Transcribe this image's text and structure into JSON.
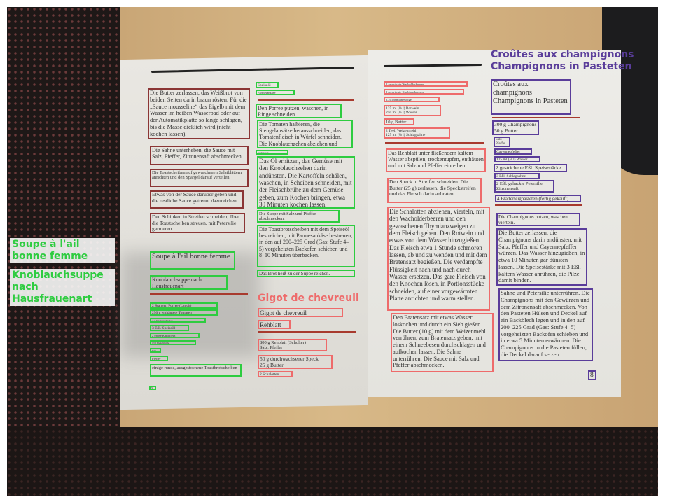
{
  "colors": {
    "left_col": "#8b3535",
    "green": "#2ecc40",
    "red": "#ee6b6b",
    "purple": "#5a3d9a"
  },
  "overlay_labels": {
    "soupe_title": "Soupe à l'ail bonne femme",
    "soupe_subtitle": "Knoblauchsuppe nach Hausfrauenart",
    "gigot_title": "Gigot de chevreuil",
    "croutes_title": "Croûtes aux champignons Champignons in Pasteten"
  },
  "groups": [
    {
      "color_key": "left_col",
      "blocks": [
        "Die Butter zerlassen, das Weißbrot von beiden Seiten darin braun rösten. Für die „Sauce mousseline“ das Eigelb mit dem Wasser im heißen Wasserbad oder auf der Automatikplatte so lange schlagen, bis die Masse dicklich wird (nicht kochen lassen).",
        "Die Sahne unterheben, die Sauce mit Salz, Pfeffer, Zitronensaft abschmecken.",
        "Die Toastscheiben auf gewaschenen Salatblättern anrichten und den Spargel darauf verteilen.",
        "Etwas von der Sauce darüber geben und die restliche Sauce getrennt dazureichen.",
        "Den Schinken in Streifen schneiden, über die Toastscheiben streuen, mit Petersilie garnieren."
      ]
    },
    {
      "color_key": "green",
      "blocks": [
        "Soupe à l'ail bonne femme",
        "Knoblauchsuppe nach Hausfrauenart",
        "2 Stangen Porree (Lauch)",
        "250 g enthäutete Tomaten",
        "4–5 Knoblauchzehen",
        "3 Eßl. Speiseöl",
        "2 große Kartoffeln",
        "1½ l Fleischbrühe",
        "Salz",
        "Pfeffer",
        "einige runde, ausgestochene Toastbrotscheiben",
        "50",
        "Speiseöl",
        "Parmesankäse",
        "Den Porree putzen, waschen, in Ringe schneiden.",
        "Die Tomaten halbieren, die Stengelansätze herausschneiden, das Tomatenfleisch in Würfel schneiden. Die Knoblauchzehen abziehen und",
        "zerdrücken.",
        "Das Öl erhitzen, das Gemüse mit den Knoblauchzehen darin andünsten. Die Kartoffeln schälen, waschen, in Scheiben schneiden, mit der Fleischbrühe zu dem Gemüse geben, zum Kochen bringen, etwa 30 Minuten kochen lassen.",
        "Die Suppe mit Salz und Pfeffer abschmecken.",
        "Die Toastbrotscheiben mit dem Speiseöl bestreichen, mit Parmesankäse bestreuen, in den auf 200–225 Grad (Gas: Stufe 4–5) vorgeheizten Backofen schieben und 8–10 Minuten überbacken.",
        "Das Brot heiß zu der Suppe reichen."
      ]
    },
    {
      "color_key": "red",
      "blocks": [
        "Gigot de chevreuil",
        "Rehblatt",
        "800 g Rehblatt (Schulter)\nSalz, Pfeffer",
        "50 g durchwachsener Speck\n25 g Butter",
        "2 Schalotten",
        "2 zerdrückte Wacholderbeeren",
        "2 zerdrückte Knoblauchzehen",
        "2–3 Thymianzweige",
        "125 ml (⅛ l) Rotwein\n250 ml (¼ l) Wasser",
        "10 g Butter",
        "2 Teel. Weizenmehl\n125 ml (⅛ l) Schlagsahne",
        "Das Rehblatt unter fließendem kaltem Wasser abspülen, trockentupfen, enthäuten und mit Salz und Pfeffer einreiben.",
        "Den Speck in Streifen schneiden. Die Butter (25 g) zerlassen, die Speckstreifen und das Fleisch darin anbraten.",
        "Die Schalotten abziehen, vierteln, mit den Wacholderbeeren und den gewaschenen Thymianzweigen zu dem Fleisch geben. Den Rotwein und etwas von dem Wasser hinzugießen. Das Fleisch etwa 1 Stunde schmoren lassen, ab und zu wenden und mit dem Bratensatz begießen. Die verdampfte Flüssigkeit nach und nach durch Wasser ersetzen. Das gare Fleisch von den Knochen lösen, in Portionsstücke schneiden, auf einer vorgewärmten Platte anrichten und warm stellen.",
        "Den Bratensatz mit etwas Wasser loskochen und durch ein Sieb gießen. Die Butter (10 g) mit dem Weizenmehl verrühren, zum Bratensatz geben, mit einem Schneebesen durchschlagen und aufkochen lassen. Die Sahne unterrühren. Die Sauce mit Salz und Pfeffer abschmecken."
      ]
    },
    {
      "color_key": "purple",
      "blocks": [
        "Croûtes aux champignons\nChampignons in Pasteten",
        "300 g Champignons\n50 g Butter",
        "Salz\nPfeffer",
        "Cayennepfeffer",
        "125 ml (⅛ l) Wasser",
        "2 gestrichene Eßl. Speisestärke",
        "3 Eßl. Schlagsahne",
        "2 Eßl. gehackte Petersilie\nZitronensaft",
        "4 Blätterteigpasteten (fertig gekauft)",
        "Die Champignons putzen, waschen, vierteln.",
        "Die Butter zerlassen, die Champignons darin andünsten, mit Salz, Pfeffer und Cayennepfeffer würzen. Das Wasser hinzugießen, in etwa 10 Minuten gar dünsten lassen. Die Speisestärke mit 3 Eßl. kaltem Wasser anrühren, die Pilze damit binden.",
        "Sahne und Petersilie unterrühren. Die Champignons mit den Gewürzen und dem Zitronensaft abschmecken. Von den Pasteten Hülsen und Deckel auf ein Backblech legen und in den auf 200–225 Grad (Gas: Stufe 4–5) vorgeheizten Backofen schieben und in etwa 5 Minuten erwärmen. Die Champignons in die Pasteten füllen, die Deckel darauf setzen.",
        "8"
      ]
    }
  ]
}
